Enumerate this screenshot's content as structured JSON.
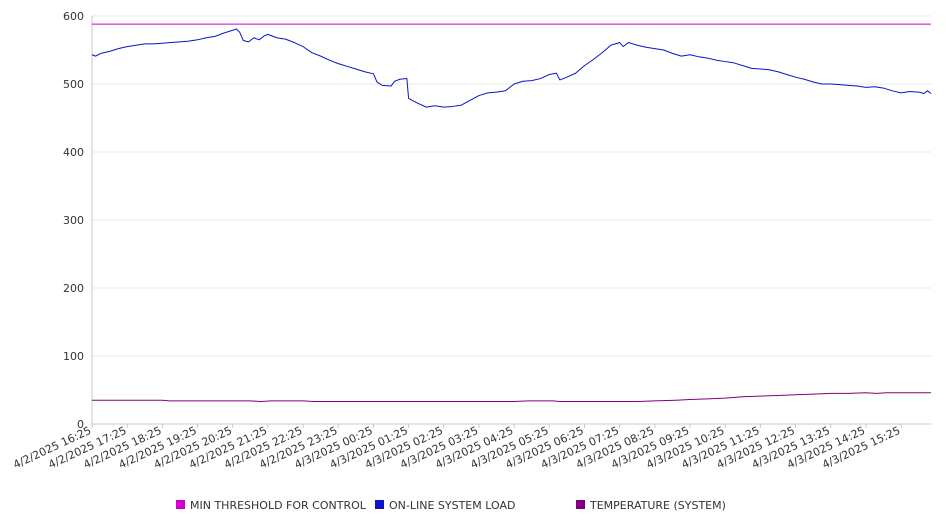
{
  "chart_data": {
    "type": "line",
    "ylim": [
      0,
      600
    ],
    "y_ticks": [
      0,
      100,
      200,
      300,
      400,
      500,
      600
    ],
    "grid": true,
    "legend_position": "bottom",
    "x_labels": [
      "4/2/2025 16:25",
      "4/2/2025 17:25",
      "4/2/2025 18:25",
      "4/2/2025 19:25",
      "4/2/2025 20:25",
      "4/2/2025 21:25",
      "4/2/2025 22:25",
      "4/2/2025 23:25",
      "4/3/2025 00:25",
      "4/3/2025 01:25",
      "4/3/2025 02:25",
      "4/3/2025 03:25",
      "4/3/2025 04:25",
      "4/3/2025 05:25",
      "4/3/2025 06:25",
      "4/3/2025 07:25",
      "4/3/2025 08:25",
      "4/3/2025 09:25",
      "4/3/2025 10:25",
      "4/3/2025 11:25",
      "4/3/2025 12:25",
      "4/3/2025 13:25",
      "4/3/2025 14:25",
      "4/3/2025 15:25"
    ],
    "x_end_hours": 23.85,
    "series": [
      {
        "name": "MIN THRESHOLD FOR CONTROL",
        "color": "#d000d0",
        "points": [
          [
            0,
            588
          ],
          [
            23.85,
            588
          ]
        ]
      },
      {
        "name": "ON-LINE SYSTEM LOAD",
        "color": "#0a14c8",
        "points": [
          [
            0,
            543
          ],
          [
            0.1,
            541
          ],
          [
            0.25,
            545
          ],
          [
            0.5,
            548
          ],
          [
            0.75,
            552
          ],
          [
            1,
            555
          ],
          [
            1.25,
            557
          ],
          [
            1.5,
            559
          ],
          [
            1.75,
            559
          ],
          [
            2,
            560
          ],
          [
            2.25,
            561
          ],
          [
            2.5,
            562
          ],
          [
            2.75,
            563
          ],
          [
            3,
            565
          ],
          [
            3.25,
            568
          ],
          [
            3.5,
            570
          ],
          [
            3.75,
            575
          ],
          [
            4,
            579
          ],
          [
            4.1,
            581
          ],
          [
            4.2,
            576
          ],
          [
            4.3,
            564
          ],
          [
            4.45,
            562
          ],
          [
            4.6,
            568
          ],
          [
            4.75,
            565
          ],
          [
            4.9,
            571
          ],
          [
            5,
            573
          ],
          [
            5.25,
            568
          ],
          [
            5.5,
            566
          ],
          [
            5.75,
            561
          ],
          [
            6,
            555
          ],
          [
            6.25,
            546
          ],
          [
            6.5,
            541
          ],
          [
            6.75,
            535
          ],
          [
            7,
            530
          ],
          [
            7.25,
            526
          ],
          [
            7.5,
            522
          ],
          [
            7.75,
            518
          ],
          [
            8,
            515
          ],
          [
            8.1,
            503
          ],
          [
            8.25,
            498
          ],
          [
            8.5,
            497
          ],
          [
            8.6,
            504
          ],
          [
            8.75,
            507
          ],
          [
            8.95,
            508
          ],
          [
            9,
            479
          ],
          [
            9.1,
            476
          ],
          [
            9.25,
            472
          ],
          [
            9.5,
            466
          ],
          [
            9.75,
            468
          ],
          [
            10,
            466
          ],
          [
            10.25,
            467
          ],
          [
            10.5,
            469
          ],
          [
            10.75,
            476
          ],
          [
            11,
            483
          ],
          [
            11.25,
            487
          ],
          [
            11.5,
            488
          ],
          [
            11.75,
            490
          ],
          [
            12,
            500
          ],
          [
            12.25,
            504
          ],
          [
            12.5,
            505
          ],
          [
            12.75,
            508
          ],
          [
            13,
            514
          ],
          [
            13.2,
            516
          ],
          [
            13.3,
            506
          ],
          [
            13.5,
            510
          ],
          [
            13.75,
            516
          ],
          [
            14,
            527
          ],
          [
            14.25,
            536
          ],
          [
            14.5,
            546
          ],
          [
            14.75,
            557
          ],
          [
            15,
            561
          ],
          [
            15.1,
            555
          ],
          [
            15.25,
            561
          ],
          [
            15.5,
            557
          ],
          [
            15.75,
            554
          ],
          [
            16,
            552
          ],
          [
            16.25,
            550
          ],
          [
            16.5,
            545
          ],
          [
            16.75,
            541
          ],
          [
            17,
            543
          ],
          [
            17.25,
            540
          ],
          [
            17.5,
            538
          ],
          [
            17.75,
            535
          ],
          [
            18,
            533
          ],
          [
            18.25,
            531
          ],
          [
            18.5,
            527
          ],
          [
            18.75,
            523
          ],
          [
            19,
            522
          ],
          [
            19.25,
            521
          ],
          [
            19.5,
            518
          ],
          [
            19.75,
            514
          ],
          [
            20,
            510
          ],
          [
            20.25,
            507
          ],
          [
            20.5,
            503
          ],
          [
            20.75,
            500
          ],
          [
            21,
            500
          ],
          [
            21.25,
            499
          ],
          [
            21.5,
            498
          ],
          [
            21.75,
            497
          ],
          [
            22,
            495
          ],
          [
            22.25,
            496
          ],
          [
            22.5,
            494
          ],
          [
            22.75,
            490
          ],
          [
            23,
            487
          ],
          [
            23.25,
            489
          ],
          [
            23.5,
            488
          ],
          [
            23.65,
            486
          ],
          [
            23.75,
            490
          ],
          [
            23.85,
            486
          ]
        ]
      },
      {
        "name": "TEMPERATURE (SYSTEM)",
        "color": "#800080",
        "points": [
          [
            0,
            35
          ],
          [
            2,
            35
          ],
          [
            2.2,
            34
          ],
          [
            4.5,
            34
          ],
          [
            4.8,
            33
          ],
          [
            5.1,
            34
          ],
          [
            6,
            34
          ],
          [
            6.3,
            33
          ],
          [
            12,
            33
          ],
          [
            12.4,
            34
          ],
          [
            13.1,
            34
          ],
          [
            13.3,
            33
          ],
          [
            15.5,
            33
          ],
          [
            16,
            34
          ],
          [
            16.6,
            35
          ],
          [
            17,
            36
          ],
          [
            17.5,
            37
          ],
          [
            18,
            38
          ],
          [
            18.5,
            40
          ],
          [
            19,
            41
          ],
          [
            19.5,
            42
          ],
          [
            20,
            43
          ],
          [
            20.5,
            44
          ],
          [
            21,
            45
          ],
          [
            21.5,
            45
          ],
          [
            22,
            46
          ],
          [
            22.3,
            45
          ],
          [
            22.6,
            46
          ],
          [
            23,
            46
          ],
          [
            23.85,
            46
          ]
        ]
      }
    ]
  }
}
